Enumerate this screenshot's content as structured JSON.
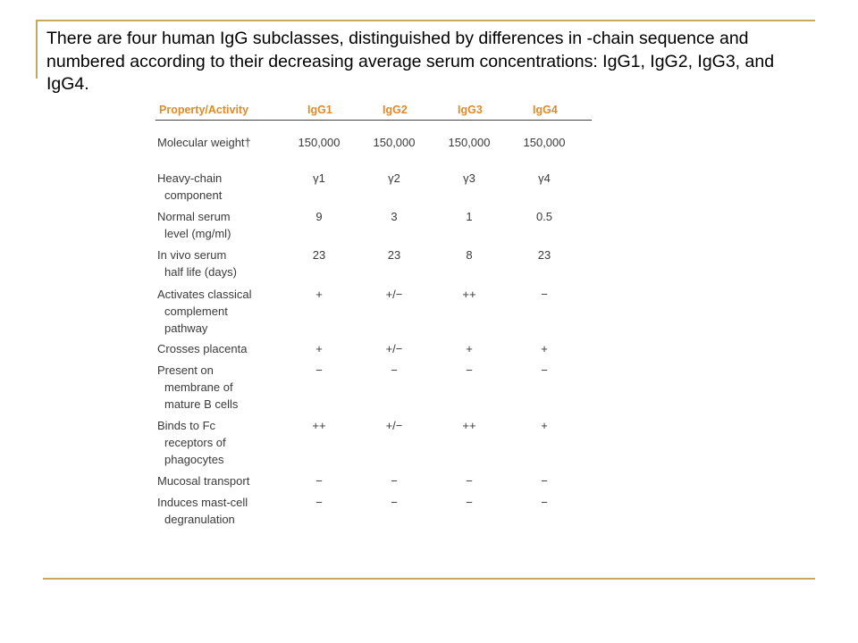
{
  "caption": "There are four human IgG subclasses, distinguished by differences in -chain sequence and numbered according to their decreasing average serum concentrations: IgG1, IgG2, IgG3, and IgG4.",
  "table": {
    "headers": [
      "Property/Activity",
      "IgG1",
      "IgG2",
      "IgG3",
      "IgG4"
    ],
    "rows": [
      {
        "label": [
          "Molecular weight†"
        ],
        "values": [
          "150,000",
          "150,000",
          "150,000",
          "150,000"
        ]
      },
      {
        "label": [
          "Heavy-chain",
          "component"
        ],
        "values": [
          "γ1",
          "γ2",
          "γ3",
          "γ4"
        ]
      },
      {
        "label": [
          "Normal serum",
          "level (mg/ml)"
        ],
        "values": [
          "9",
          "3",
          "1",
          "0.5"
        ]
      },
      {
        "label": [
          "In vivo serum",
          "half life (days)"
        ],
        "values": [
          "23",
          "23",
          "8",
          "23"
        ]
      },
      {
        "label": [
          "Activates classical",
          "complement",
          "pathway"
        ],
        "values": [
          "+",
          "+/−",
          "++",
          "−"
        ]
      },
      {
        "label": [
          "Crosses placenta"
        ],
        "values": [
          "+",
          "+/−",
          "+",
          "+"
        ]
      },
      {
        "label": [
          "Present on",
          "membrane of",
          "mature B cells"
        ],
        "values": [
          "−",
          "−",
          "−",
          "−"
        ]
      },
      {
        "label": [
          "Binds to Fc",
          "receptors of",
          "phagocytes"
        ],
        "values": [
          "++",
          "+/−",
          "++",
          "+"
        ]
      },
      {
        "label": [
          "Mucosal transport"
        ],
        "values": [
          "−",
          "−",
          "−",
          "−"
        ]
      },
      {
        "label": [
          "Induces mast-cell",
          "degranulation"
        ],
        "values": [
          "−",
          "−",
          "−",
          "−"
        ]
      }
    ]
  }
}
